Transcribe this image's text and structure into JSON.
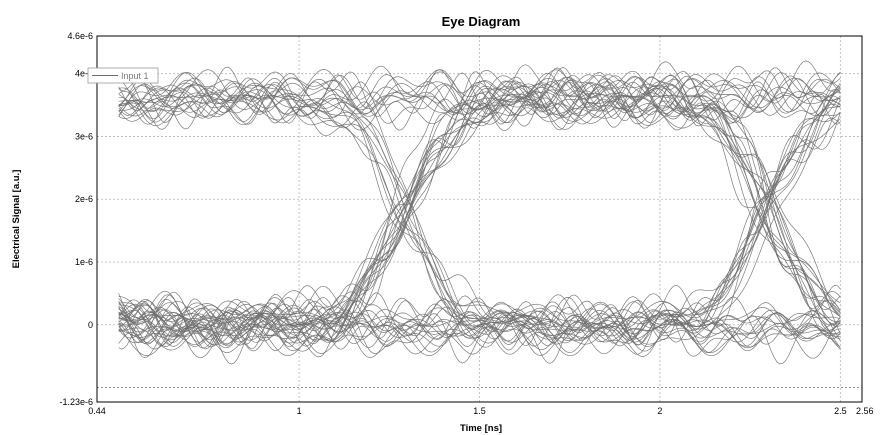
{
  "chart_data": {
    "type": "line",
    "title": "Eye Diagram",
    "xlabel": "Time [ns]",
    "ylabel": "Electrical Signal [a.u.]",
    "xlim": [
      0.44,
      2.56
    ],
    "ylim": [
      -1.23e-06,
      4.6e-06
    ],
    "x_ticks": [
      {
        "value": 0.44,
        "label": "0.44"
      },
      {
        "value": 1,
        "label": "1"
      },
      {
        "value": 1.5,
        "label": "1.5"
      },
      {
        "value": 2,
        "label": "2"
      },
      {
        "value": 2.5,
        "label": "2.5"
      },
      {
        "value": 2.56,
        "label": "2.56"
      }
    ],
    "y_ticks": [
      {
        "value": -1.23e-06,
        "label": "-1.23e-6"
      },
      {
        "value": 0,
        "label": "0"
      },
      {
        "value": 1e-06,
        "label": "1e-6"
      },
      {
        "value": 2e-06,
        "label": "2e-6"
      },
      {
        "value": 3e-06,
        "label": "3e-6"
      },
      {
        "value": 4e-06,
        "label": "4e-6"
      },
      {
        "value": 4.6e-06,
        "label": "4.6e-6"
      }
    ],
    "grid": true,
    "legend": {
      "placement": "top-left",
      "entries": [
        "Input 1"
      ]
    },
    "series_color": "#6e6e6e",
    "trace_start": 0.5,
    "trace_end": 2.5,
    "bit_period": 1.0,
    "crossing_times": [
      1.3,
      2.3
    ],
    "crossing_level": 1.8e-06,
    "high_level": 3.6e-06,
    "low_level": 0.0,
    "trace_count": 60
  }
}
